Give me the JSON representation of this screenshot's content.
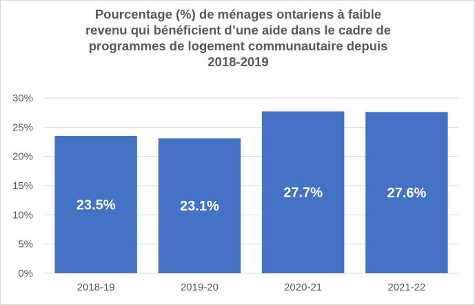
{
  "chart_data": {
    "type": "bar",
    "title_lines": [
      "Pourcentage (%) de ménages ontariens à faible",
      "revenu qui bénéficient d’une aide dans le cadre de",
      "programmes de logement communautaire depuis",
      "2018-2019"
    ],
    "categories": [
      "2018-19",
      "2019-20",
      "2020-21",
      "2021-22"
    ],
    "values": [
      23.5,
      23.1,
      27.7,
      27.6
    ],
    "data_labels": [
      "23.5%",
      "23.1%",
      "27.7%",
      "27.6%"
    ],
    "y_ticks": [
      "0%",
      "5%",
      "10%",
      "15%",
      "20%",
      "25%",
      "30%"
    ],
    "ylim": [
      0,
      30
    ],
    "grid": true,
    "legend": "none",
    "colors": {
      "bar": "#4472C4",
      "grid": "#d9d9d9",
      "text": "#595959",
      "label": "#ffffff"
    }
  }
}
